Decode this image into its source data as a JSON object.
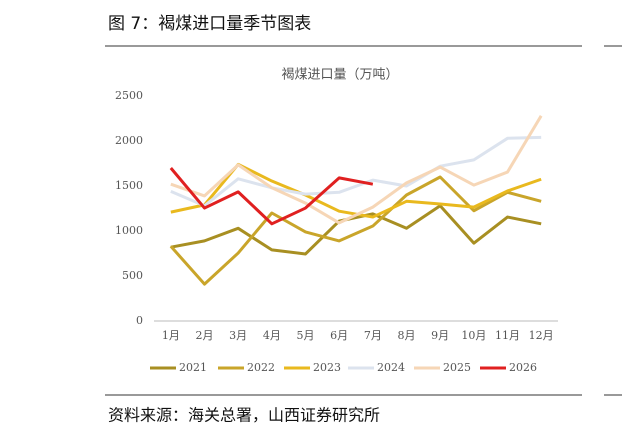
{
  "header": {
    "title": "图 7：褐煤进口量季节图表"
  },
  "chart_data": {
    "type": "line",
    "title": "褐煤进口量（万吨）",
    "categories": [
      "1月",
      "2月",
      "3月",
      "4月",
      "5月",
      "6月",
      "7月",
      "8月",
      "9月",
      "10月",
      "11月",
      "12月"
    ],
    "ylim": [
      0,
      2500
    ],
    "yticks": [
      0,
      500,
      1000,
      1500,
      2000,
      2500
    ],
    "grid": false,
    "legend": "bottom",
    "series": [
      {
        "name": "2021",
        "color": "#a88f22",
        "values": [
          820,
          890,
          1030,
          790,
          745,
          1110,
          1190,
          1030,
          1280,
          865,
          1155,
          1080
        ]
      },
      {
        "name": "2022",
        "color": "#c9a52a",
        "values": [
          830,
          410,
          755,
          1200,
          990,
          890,
          1055,
          1400,
          1600,
          1225,
          1430,
          1330
        ]
      },
      {
        "name": "2023",
        "color": "#e9b91e",
        "values": [
          1210,
          1290,
          1740,
          1555,
          1400,
          1220,
          1155,
          1330,
          1300,
          1265,
          1445,
          1575
        ]
      },
      {
        "name": "2024",
        "color": "#dce3ee",
        "values": [
          1440,
          1280,
          1580,
          1480,
          1410,
          1430,
          1565,
          1500,
          1720,
          1790,
          2030,
          2040
        ]
      },
      {
        "name": "2025",
        "color": "#f6d6b6",
        "values": [
          1520,
          1390,
          1735,
          1480,
          1310,
          1090,
          1265,
          1535,
          1710,
          1510,
          1655,
          2280
        ]
      },
      {
        "name": "2026",
        "color": "#e02020",
        "values": [
          1700,
          1255,
          1435,
          1080,
          1255,
          1590,
          1520,
          null,
          null,
          null,
          null,
          null
        ]
      }
    ]
  },
  "source": "资料来源：海关总署，山西证券研究所"
}
